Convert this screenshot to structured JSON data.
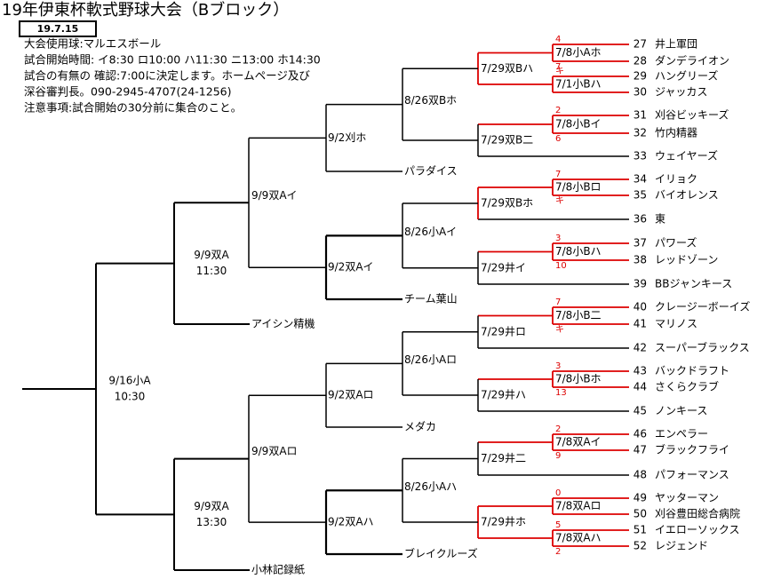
{
  "title": "19年伊東杯軟式野球大会（Bブロック）",
  "date": "19.7.15",
  "info": [
    "大会使用球:マルエスボール",
    "試合開始時間: イ8:30 ロ10:00 ハ11:30 ニ13:00 ホ14:30",
    "試合の有無の 確認:7:00に決定します。ホームページ及び",
    "深谷審判長。090-2945-4707(24-1256)",
    "注意事項:試合開始の30分前に集合のこと。"
  ],
  "teams": [
    {
      "num": 27,
      "name": "井上軍団"
    },
    {
      "num": 28,
      "name": "ダンデライオン"
    },
    {
      "num": 29,
      "name": "ハングリーズ"
    },
    {
      "num": 30,
      "name": "ジャッカス"
    },
    {
      "num": 31,
      "name": "刈谷ビッキーズ"
    },
    {
      "num": 32,
      "name": "竹内精器"
    },
    {
      "num": 33,
      "name": "ウェイヤーズ"
    },
    {
      "num": 34,
      "name": "イリョク"
    },
    {
      "num": 35,
      "name": "バイオレンス"
    },
    {
      "num": 36,
      "name": "東"
    },
    {
      "num": 37,
      "name": "パワーズ"
    },
    {
      "num": 38,
      "name": "レッドゾーン"
    },
    {
      "num": 39,
      "name": "BBジャンキース"
    },
    {
      "num": 40,
      "name": "クレージーボーイズ"
    },
    {
      "num": 41,
      "name": "マリノス"
    },
    {
      "num": 42,
      "name": "スーパーブラックス"
    },
    {
      "num": 43,
      "name": "バックドラフト"
    },
    {
      "num": 44,
      "name": "さくらクラブ"
    },
    {
      "num": 45,
      "name": "ノンキース"
    },
    {
      "num": 46,
      "name": "エンペラー"
    },
    {
      "num": 47,
      "name": "ブラックフライ"
    },
    {
      "num": 48,
      "name": "パフォーマンス"
    },
    {
      "num": 49,
      "name": "ヤッターマン"
    },
    {
      "num": 50,
      "name": "刈谷豊田総合病院"
    },
    {
      "num": 51,
      "name": "イエローソックス"
    },
    {
      "num": 52,
      "name": "レジェンド"
    }
  ],
  "left_teams": [
    "パラダイス",
    "チーム葉山",
    "アイシン精機",
    "メダカ",
    "ブレイクルーズ",
    "小林記録紙"
  ],
  "round1": [
    {
      "label": "7/8小Aホ",
      "scores": [
        "4",
        "7"
      ]
    },
    {
      "label": "7/1小Bハ",
      "scores": [
        "キ"
      ]
    },
    {
      "label": "7/8小Bイ",
      "scores": [
        "2",
        "6"
      ]
    },
    {
      "label": "7/8小Bロ",
      "scores": [
        "7",
        "キ"
      ]
    },
    {
      "label": "7/8小Bハ",
      "scores": [
        "3",
        "10"
      ]
    },
    {
      "label": "7/8小B二",
      "scores": [
        "7",
        "キ"
      ]
    },
    {
      "label": "7/8小Bホ",
      "scores": [
        "3",
        "13"
      ]
    },
    {
      "label": "7/8双Aイ",
      "scores": [
        "2",
        "9"
      ]
    },
    {
      "label": "7/8双Aロ",
      "scores": [
        "0"
      ]
    },
    {
      "label": "7/8双Aハ",
      "scores": [
        "5",
        "2"
      ]
    }
  ],
  "round2": [
    "7/29双Bハ",
    "7/29双B二",
    "7/29双Bホ",
    "7/29井イ",
    "7/29井ロ",
    "7/29井ハ",
    "7/29井二",
    "7/29井ホ"
  ],
  "round3": [
    "8/26双Bホ",
    "8/26小Aイ",
    "8/26小Aロ",
    "8/26小Aハ"
  ],
  "round4": [
    "9/2刈ホ",
    "9/2双Aイ",
    "9/2双Aロ",
    "9/2双Aハ"
  ],
  "round5": [
    "9/9双Aイ",
    "9/9双Aロ"
  ],
  "round6": [
    {
      "label": "9/9双A",
      "time": "11:30"
    },
    {
      "label": "9/9双A",
      "time": "13:30"
    }
  ],
  "final": {
    "label": "9/16小A",
    "time": "10:30"
  }
}
